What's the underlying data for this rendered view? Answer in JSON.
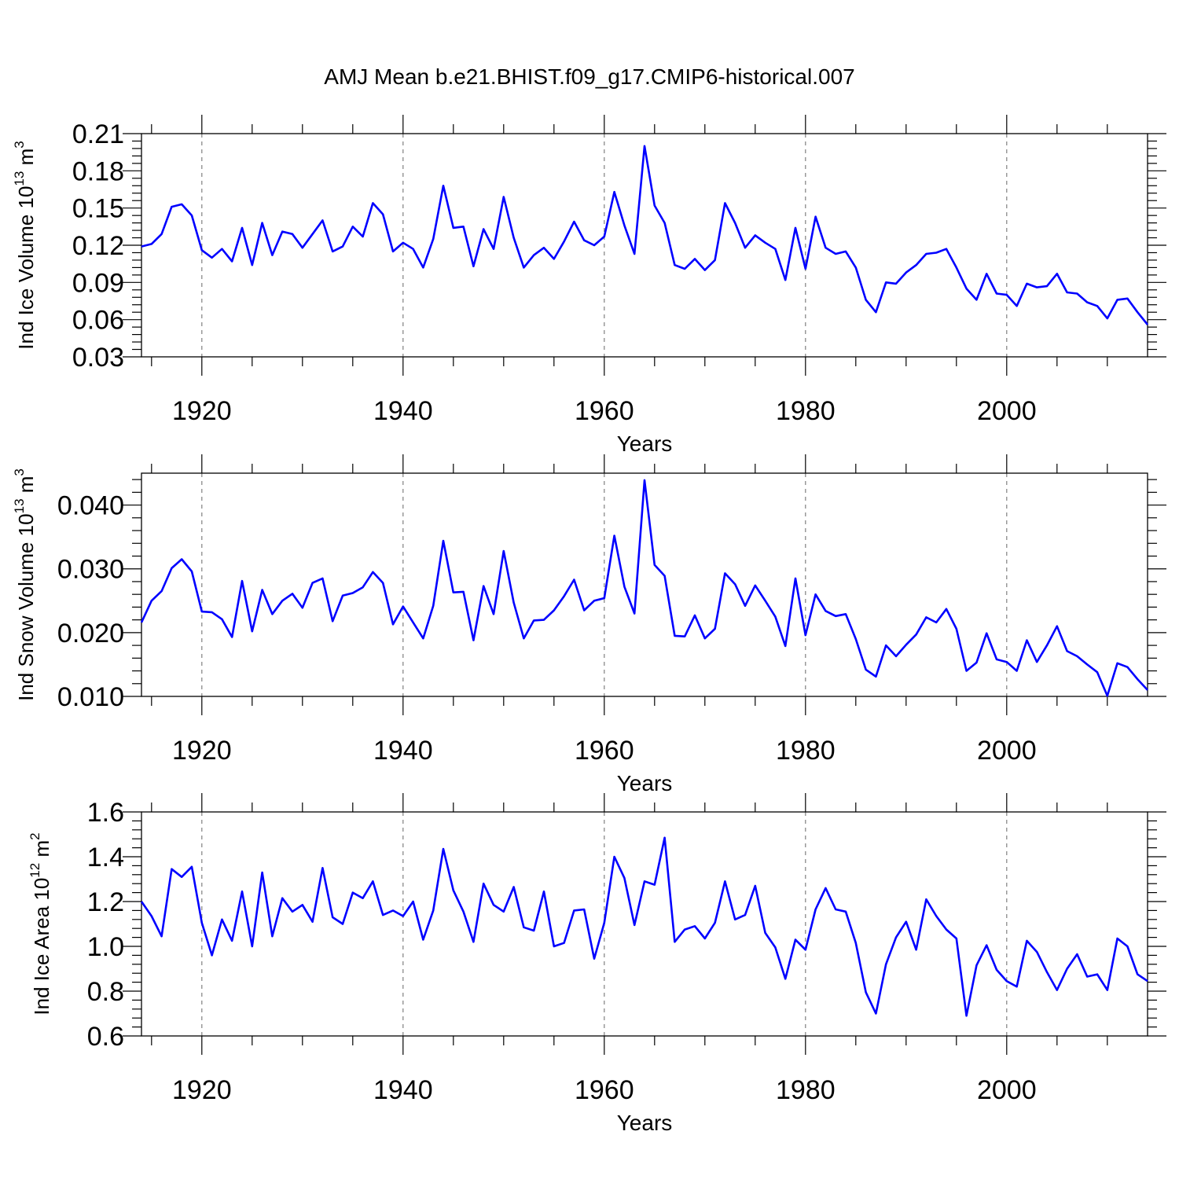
{
  "title": "AMJ Mean b.e21.BHIST.f09_g17.CMIP6-historical.007",
  "colors": {
    "line": "#0000ff",
    "axis": "#000000",
    "grid": "#808080"
  },
  "chart_data": [
    {
      "type": "line",
      "ylabel_text": "Ind Ice Volume 10",
      "ylabel_exp": "13",
      "ylabel_unit": " m",
      "ylabel_unit_exp": "3",
      "xlabel": "Years",
      "xlim": [
        1914,
        2014
      ],
      "ylim": [
        0.03,
        0.21
      ],
      "x_ticks": [
        1920,
        1940,
        1960,
        1980,
        2000
      ],
      "x_tick_labels": [
        "1920",
        "1940",
        "1960",
        "1980",
        "2000"
      ],
      "y_ticks": [
        0.03,
        0.06,
        0.09,
        0.12,
        0.15,
        0.18,
        0.21
      ],
      "y_tick_labels": [
        "0.03",
        "0.06",
        "0.09",
        "0.12",
        "0.15",
        "0.18",
        "0.21"
      ],
      "y_minor_step": 0.006,
      "grid": "vertical dashed at major x ticks",
      "series": [
        {
          "x_start": 1914,
          "values": [
            0.119,
            0.121,
            0.129,
            0.151,
            0.153,
            0.144,
            0.116,
            0.11,
            0.117,
            0.107,
            0.134,
            0.104,
            0.138,
            0.112,
            0.131,
            0.129,
            0.118,
            0.129,
            0.14,
            0.115,
            0.119,
            0.135,
            0.127,
            0.154,
            0.145,
            0.115,
            0.122,
            0.117,
            0.102,
            0.125,
            0.168,
            0.134,
            0.135,
            0.103,
            0.133,
            0.117,
            0.159,
            0.126,
            0.102,
            0.112,
            0.118,
            0.109,
            0.123,
            0.139,
            0.124,
            0.12,
            0.127,
            0.163,
            0.136,
            0.113,
            0.2,
            0.152,
            0.138,
            0.104,
            0.101,
            0.109,
            0.1,
            0.108,
            0.154,
            0.138,
            0.118,
            0.128,
            0.122,
            0.117,
            0.092,
            0.134,
            0.101,
            0.143,
            0.118,
            0.113,
            0.115,
            0.102,
            0.076,
            0.066,
            0.09,
            0.089,
            0.098,
            0.104,
            0.113,
            0.114,
            0.117,
            0.102,
            0.085,
            0.076,
            0.097,
            0.081,
            0.08,
            0.071,
            0.089,
            0.086,
            0.087,
            0.097,
            0.082,
            0.081,
            0.074,
            0.071,
            0.061,
            0.076,
            0.077,
            0.066,
            0.056
          ]
        }
      ]
    },
    {
      "type": "line",
      "ylabel_text": "Ind Snow Volume 10",
      "ylabel_exp": "13",
      "ylabel_unit": " m",
      "ylabel_unit_exp": "3",
      "xlabel": "Years",
      "xlim": [
        1914,
        2014
      ],
      "ylim": [
        0.01,
        0.045
      ],
      "x_ticks": [
        1920,
        1940,
        1960,
        1980,
        2000
      ],
      "x_tick_labels": [
        "1920",
        "1940",
        "1960",
        "1980",
        "2000"
      ],
      "y_ticks": [
        0.01,
        0.02,
        0.03,
        0.04
      ],
      "y_tick_labels": [
        "0.010",
        "0.020",
        "0.030",
        "0.040"
      ],
      "y_minor_step": 0.002,
      "grid": "vertical dashed at major x ticks",
      "series": [
        {
          "x_start": 1914,
          "values": [
            0.0216,
            0.025,
            0.0265,
            0.0301,
            0.0315,
            0.0296,
            0.0233,
            0.0232,
            0.0221,
            0.0193,
            0.0281,
            0.0202,
            0.0267,
            0.0229,
            0.025,
            0.0261,
            0.0239,
            0.0278,
            0.0285,
            0.0218,
            0.0258,
            0.0262,
            0.0271,
            0.0295,
            0.0278,
            0.0213,
            0.0241,
            0.0216,
            0.0191,
            0.0242,
            0.0344,
            0.0263,
            0.0264,
            0.0188,
            0.0273,
            0.0229,
            0.0328,
            0.0247,
            0.0191,
            0.0219,
            0.022,
            0.0235,
            0.0257,
            0.0283,
            0.0235,
            0.025,
            0.0254,
            0.0352,
            0.0272,
            0.023,
            0.0439,
            0.0306,
            0.0289,
            0.0195,
            0.0194,
            0.0227,
            0.0191,
            0.0206,
            0.0293,
            0.0276,
            0.0242,
            0.0274,
            0.025,
            0.0225,
            0.0179,
            0.0285,
            0.0196,
            0.026,
            0.0234,
            0.0226,
            0.0229,
            0.019,
            0.0142,
            0.0131,
            0.018,
            0.0163,
            0.0181,
            0.0197,
            0.0224,
            0.0216,
            0.0237,
            0.0206,
            0.014,
            0.0153,
            0.0199,
            0.0158,
            0.0154,
            0.014,
            0.0188,
            0.0154,
            0.018,
            0.021,
            0.0171,
            0.0163,
            0.015,
            0.0138,
            0.0101,
            0.0152,
            0.0146,
            0.0127,
            0.011
          ]
        }
      ]
    },
    {
      "type": "line",
      "ylabel_text": "Ind Ice Area 10",
      "ylabel_exp": "12",
      "ylabel_unit": " m",
      "ylabel_unit_exp": "2",
      "xlabel": "Years",
      "xlim": [
        1914,
        2014
      ],
      "ylim": [
        0.6,
        1.6
      ],
      "x_ticks": [
        1920,
        1940,
        1960,
        1980,
        2000
      ],
      "x_tick_labels": [
        "1920",
        "1940",
        "1960",
        "1980",
        "2000"
      ],
      "y_ticks": [
        0.6,
        0.8,
        1.0,
        1.2,
        1.4,
        1.6
      ],
      "y_tick_labels": [
        "0.6",
        "0.8",
        "1.0",
        "1.2",
        "1.4",
        "1.6"
      ],
      "y_minor_step": 0.04,
      "grid": "vertical dashed at major x ticks",
      "series": [
        {
          "x_start": 1914,
          "values": [
            1.2,
            1.135,
            1.045,
            1.345,
            1.31,
            1.355,
            1.105,
            0.96,
            1.12,
            1.025,
            1.245,
            1.0,
            1.33,
            1.045,
            1.215,
            1.155,
            1.185,
            1.11,
            1.35,
            1.13,
            1.1,
            1.24,
            1.215,
            1.29,
            1.14,
            1.16,
            1.135,
            1.2,
            1.03,
            1.16,
            1.435,
            1.25,
            1.155,
            1.02,
            1.28,
            1.185,
            1.155,
            1.265,
            1.085,
            1.07,
            1.245,
            1.0,
            1.015,
            1.16,
            1.165,
            0.945,
            1.105,
            1.4,
            1.305,
            1.095,
            1.29,
            1.275,
            1.485,
            1.02,
            1.075,
            1.09,
            1.035,
            1.105,
            1.29,
            1.12,
            1.14,
            1.27,
            1.06,
            0.995,
            0.855,
            1.03,
            0.985,
            1.165,
            1.26,
            1.165,
            1.155,
            1.015,
            0.795,
            0.7,
            0.92,
            1.04,
            1.11,
            0.985,
            1.21,
            1.135,
            1.075,
            1.035,
            0.69,
            0.915,
            1.005,
            0.895,
            0.845,
            0.82,
            1.025,
            0.975,
            0.885,
            0.805,
            0.9,
            0.965,
            0.865,
            0.875,
            0.805,
            1.035,
            1.0,
            0.875,
            0.845
          ]
        }
      ]
    }
  ]
}
